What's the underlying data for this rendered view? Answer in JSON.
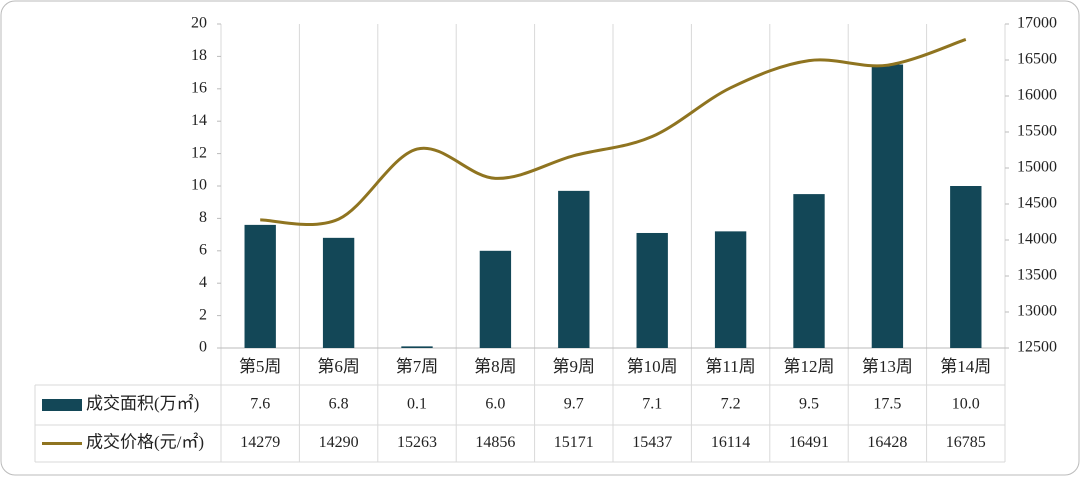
{
  "chart_data": {
    "type": "bar-line",
    "categories": [
      "第5周",
      "第6周",
      "第7周",
      "第8周",
      "第9周",
      "第10周",
      "第11周",
      "第12周",
      "第13周",
      "第14周"
    ],
    "series": [
      {
        "name": "成交面积(万㎡)",
        "type": "bar",
        "color": "#134757",
        "values": [
          7.6,
          6.8,
          0.1,
          6.0,
          9.7,
          7.1,
          7.2,
          9.5,
          17.5,
          10.0
        ],
        "value_labels": [
          "7.6",
          "6.8",
          "0.1",
          "6.0",
          "9.7",
          "7.1",
          "7.2",
          "9.5",
          "17.5",
          "10.0"
        ]
      },
      {
        "name": "成交价格(元/㎡)",
        "type": "line",
        "axis": "y2",
        "color": "#8f7420",
        "values": [
          14279,
          14290,
          15263,
          14856,
          15171,
          15437,
          16114,
          16491,
          16428,
          16785
        ]
      }
    ],
    "ylim": [
      0,
      20
    ],
    "yticks": [
      0,
      2,
      4,
      6,
      8,
      10,
      12,
      14,
      16,
      18,
      20
    ],
    "y2lim": [
      12500,
      17000
    ],
    "y2ticks": [
      12500,
      13000,
      13500,
      14000,
      14500,
      15000,
      15500,
      16000,
      16500,
      17000
    ]
  }
}
